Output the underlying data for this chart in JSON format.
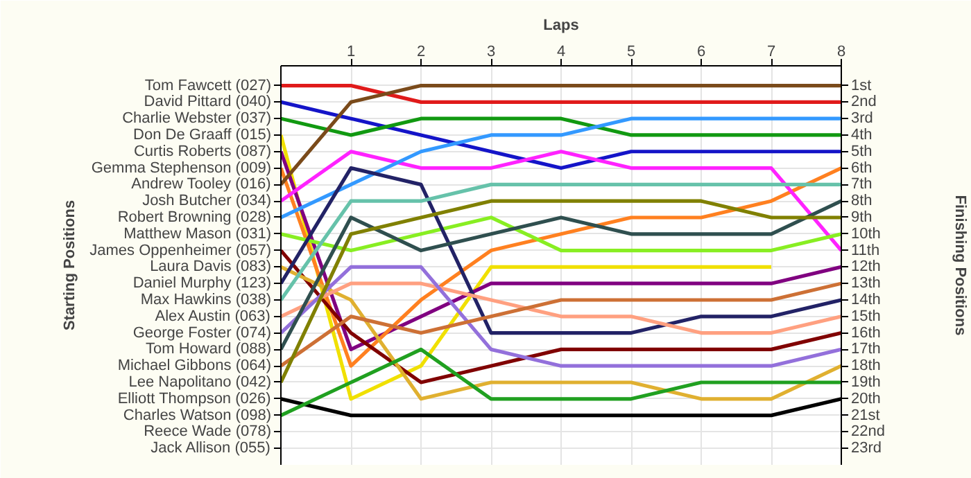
{
  "chart_data": {
    "type": "line",
    "xlabel": "Laps",
    "annotations": [
      "Starting Positions"
    ],
    "y2label": "Finishing Positions",
    "x": [
      0,
      1,
      2,
      3,
      4,
      5,
      6,
      7,
      8
    ],
    "xlim": [
      0,
      8
    ],
    "xticks": [
      1,
      2,
      3,
      4,
      5,
      6,
      7,
      8
    ],
    "y_categories": [
      "Tom Fawcett (027)",
      "David Pittard (040)",
      "Charlie Webster (037)",
      "Don De Graaff (015)",
      "Curtis Roberts (087)",
      "Gemma Stephenson (009)",
      "Andrew Tooley (016)",
      "Josh Butcher (034)",
      "Robert Browning (028)",
      "Matthew Mason (031)",
      "James Oppenheimer (057)",
      "Laura Davis (083)",
      "Daniel Murphy (123)",
      "Max Hawkins (038)",
      "Alex Austin (063)",
      "George Foster (074)",
      "Tom Howard (088)",
      "Michael Gibbons (064)",
      "Lee Napolitano (042)",
      "Elliott Thompson (026)",
      "Charles Watson (098)",
      "Reece Wade (078)",
      "Jack Allison (055)"
    ],
    "y2lim": [
      24,
      -0.2
    ],
    "y2ticks": [
      {
        "value": 1,
        "label": "1st"
      },
      {
        "value": 2,
        "label": "2nd"
      },
      {
        "value": 3,
        "label": "3rd"
      },
      {
        "value": 4,
        "label": "4th"
      },
      {
        "value": 5,
        "label": "5th"
      },
      {
        "value": 6,
        "label": "6th"
      },
      {
        "value": 7,
        "label": "7th"
      },
      {
        "value": 8,
        "label": "8th"
      },
      {
        "value": 9,
        "label": "9th"
      },
      {
        "value": 10,
        "label": "10th"
      },
      {
        "value": 11,
        "label": "11th"
      },
      {
        "value": 12,
        "label": "12th"
      },
      {
        "value": 13,
        "label": "13th"
      },
      {
        "value": 14,
        "label": "14th"
      },
      {
        "value": 15,
        "label": "15th"
      },
      {
        "value": 16,
        "label": "16th"
      },
      {
        "value": 17,
        "label": "17th"
      },
      {
        "value": 18,
        "label": "18th"
      },
      {
        "value": 19,
        "label": "19th"
      },
      {
        "value": 20,
        "label": "20th"
      },
      {
        "value": 21,
        "label": "21st"
      },
      {
        "value": 22,
        "label": "22nd"
      },
      {
        "value": 23,
        "label": "23rd"
      }
    ],
    "grid": true,
    "marker": "none",
    "line_style": "solid",
    "series": [
      {
        "color": "#e01a1a",
        "axis": "y2",
        "values": [
          1,
          1,
          2,
          2,
          2,
          2,
          2,
          2,
          2
        ]
      },
      {
        "color": "#1414c8",
        "axis": "y2",
        "values": [
          2,
          3,
          4,
          5,
          6,
          5,
          5,
          5,
          5
        ]
      },
      {
        "color": "#119911",
        "axis": "y2",
        "values": [
          3,
          4,
          3,
          3,
          3,
          4,
          4,
          4,
          4
        ]
      },
      {
        "color": "#f0e000",
        "axis": "y2",
        "values": [
          4,
          20,
          18,
          12,
          12,
          12,
          12,
          12,
          null
        ]
      },
      {
        "color": "#800080",
        "axis": "y2",
        "values": [
          5,
          17,
          15,
          13,
          13,
          13,
          13,
          13,
          12
        ]
      },
      {
        "color": "#ff8020",
        "axis": "y2",
        "values": [
          6,
          18,
          14,
          11,
          10,
          9,
          9,
          8,
          6
        ]
      },
      {
        "color": "#7a4a1a",
        "axis": "y2",
        "values": [
          7,
          2,
          1,
          1,
          1,
          1,
          1,
          1,
          1
        ]
      },
      {
        "color": "#ff22ff",
        "axis": "y2",
        "values": [
          8,
          5,
          6,
          6,
          5,
          6,
          6,
          6,
          11
        ]
      },
      {
        "color": "#3399ff",
        "axis": "y2",
        "values": [
          9,
          7,
          5,
          4,
          4,
          3,
          3,
          3,
          3
        ]
      },
      {
        "color": "#88ee22",
        "axis": "y2",
        "values": [
          10,
          11,
          10,
          9,
          11,
          11,
          11,
          11,
          10
        ]
      },
      {
        "color": "#800000",
        "axis": "y2",
        "values": [
          11,
          16,
          19,
          18,
          17,
          17,
          17,
          17,
          16
        ]
      },
      {
        "color": "#e0b030",
        "axis": "y2",
        "values": [
          12,
          14,
          20,
          19,
          19,
          19,
          20,
          20,
          18
        ]
      },
      {
        "color": "#222266",
        "axis": "y2",
        "values": [
          13,
          6,
          7,
          16,
          16,
          16,
          15,
          15,
          14
        ]
      },
      {
        "color": "#66c2aa",
        "axis": "y2",
        "values": [
          14,
          8,
          8,
          7,
          7,
          7,
          7,
          7,
          7
        ]
      },
      {
        "color": "#ffa080",
        "axis": "y2",
        "values": [
          15,
          13,
          13,
          14,
          15,
          15,
          16,
          16,
          15
        ]
      },
      {
        "color": "#9370db",
        "axis": "y2",
        "values": [
          16,
          12,
          12,
          17,
          18,
          18,
          18,
          18,
          17
        ]
      },
      {
        "color": "#2f4f4f",
        "axis": "y2",
        "values": [
          17,
          9,
          11,
          10,
          9,
          10,
          10,
          10,
          8
        ]
      },
      {
        "color": "#cd7035",
        "axis": "y2",
        "values": [
          18,
          15,
          16,
          15,
          14,
          14,
          14,
          14,
          13
        ]
      },
      {
        "color": "#808000",
        "axis": "y2",
        "values": [
          19,
          10,
          9,
          8,
          8,
          8,
          8,
          9,
          9
        ]
      },
      {
        "color": "#000000",
        "axis": "y2",
        "values": [
          20,
          21,
          21,
          21,
          21,
          21,
          21,
          21,
          20
        ]
      },
      {
        "color": "#20a020",
        "axis": "y2",
        "values": [
          21,
          19,
          17,
          20,
          20,
          20,
          19,
          19,
          19
        ]
      }
    ]
  }
}
